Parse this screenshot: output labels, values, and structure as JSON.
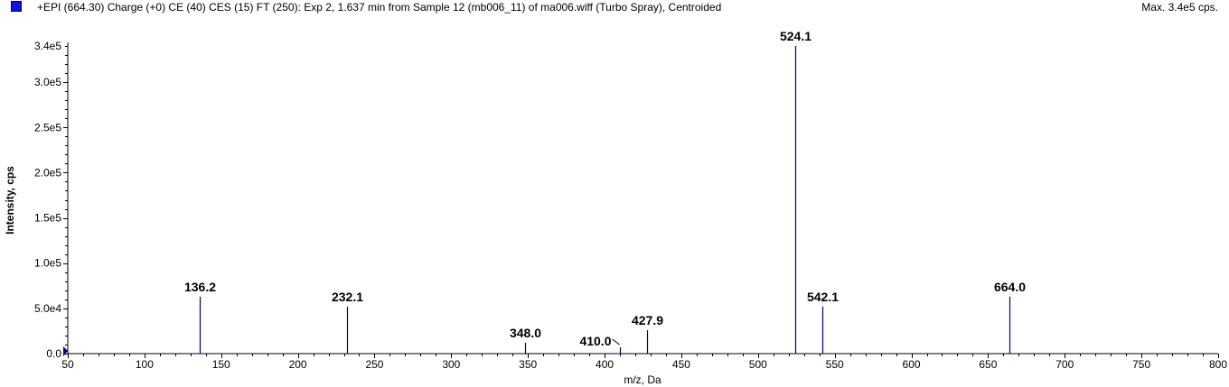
{
  "header": {
    "title": "+EPI (664.30) Charge (+0) CE (40) CES (15) FT (250): Exp 2, 1.637 min from Sample 12 (mb006_11) of ma006.wiff (Turbo Spray), Centroided",
    "max_label": "Max. 3.4e5 cps.",
    "series_color": "#1010e0"
  },
  "chart_data": {
    "type": "bar",
    "title": "+EPI (664.30) Charge (+0) CE (40) CES (15) FT (250): Exp 2, 1.637 min from Sample 12 (mb006_11) of ma006.wiff (Turbo Spray), Centroided",
    "xlabel": "m/z, Da",
    "ylabel": "Intensity, cps",
    "xlim": [
      50,
      800
    ],
    "ylim": [
      0,
      340000
    ],
    "grid": false,
    "line_color": "#00007a",
    "x_ticks": [
      50,
      100,
      150,
      200,
      250,
      300,
      350,
      400,
      450,
      500,
      550,
      600,
      650,
      700,
      750,
      800
    ],
    "y_ticks": [
      {
        "value": 0,
        "label": "0.0"
      },
      {
        "value": 50000,
        "label": "5.0e4"
      },
      {
        "value": 100000,
        "label": "1.0e5"
      },
      {
        "value": 150000,
        "label": "1.5e5"
      },
      {
        "value": 200000,
        "label": "2.0e5"
      },
      {
        "value": 250000,
        "label": "2.5e5"
      },
      {
        "value": 300000,
        "label": "3.0e5"
      },
      {
        "value": 340000,
        "label": "3.4e5"
      }
    ],
    "peaks": [
      {
        "mz": 136.2,
        "intensity": 63000,
        "label": "136.2"
      },
      {
        "mz": 232.1,
        "intensity": 52000,
        "label": "232.1"
      },
      {
        "mz": 348.0,
        "intensity": 12000,
        "label": "348.0"
      },
      {
        "mz": 410.0,
        "intensity": 7000,
        "label": "410.0"
      },
      {
        "mz": 427.9,
        "intensity": 26000,
        "label": "427.9"
      },
      {
        "mz": 524.1,
        "intensity": 340000,
        "label": "524.1"
      },
      {
        "mz": 542.1,
        "intensity": 52000,
        "label": "542.1"
      },
      {
        "mz": 664.0,
        "intensity": 63000,
        "label": "664.0"
      }
    ]
  }
}
